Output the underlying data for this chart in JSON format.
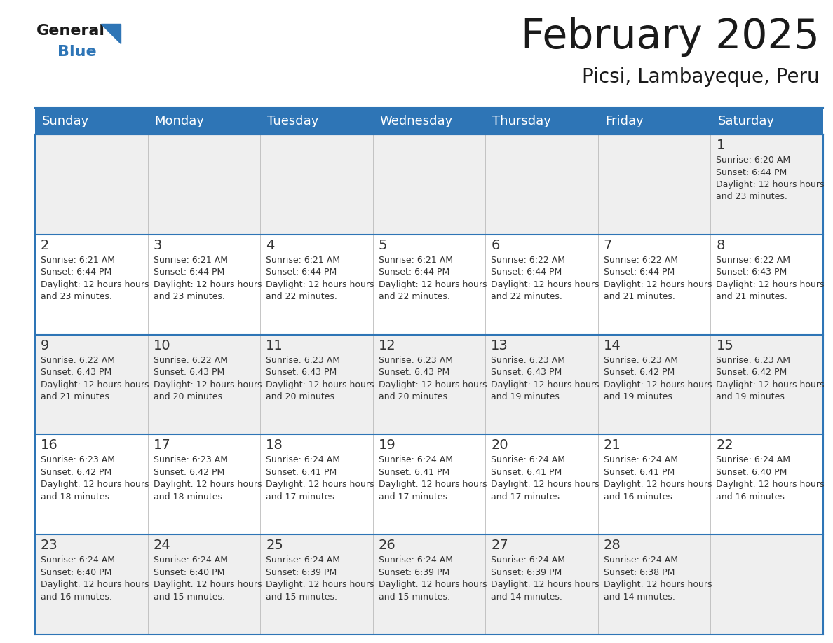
{
  "title": "February 2025",
  "subtitle": "Picsi, Lambayeque, Peru",
  "days_of_week": [
    "Sunday",
    "Monday",
    "Tuesday",
    "Wednesday",
    "Thursday",
    "Friday",
    "Saturday"
  ],
  "header_bg": "#2E75B6",
  "header_text": "#FFFFFF",
  "cell_bg": "#FFFFFF",
  "cell_alt_bg": "#EFEFEF",
  "grid_line_color": "#2E75B6",
  "day_number_color": "#333333",
  "info_text_color": "#333333",
  "title_color": "#1a1a1a",
  "subtitle_color": "#1a1a1a",
  "logo_general_color": "#1a1a1a",
  "logo_blue_color": "#2E75B6",
  "calendar_data": [
    [
      null,
      null,
      null,
      null,
      null,
      null,
      {
        "day": 1,
        "sunrise": "6:20 AM",
        "sunset": "6:44 PM",
        "daylight": "12 hours and 23 minutes"
      }
    ],
    [
      {
        "day": 2,
        "sunrise": "6:21 AM",
        "sunset": "6:44 PM",
        "daylight": "12 hours and 23 minutes"
      },
      {
        "day": 3,
        "sunrise": "6:21 AM",
        "sunset": "6:44 PM",
        "daylight": "12 hours and 23 minutes"
      },
      {
        "day": 4,
        "sunrise": "6:21 AM",
        "sunset": "6:44 PM",
        "daylight": "12 hours and 22 minutes"
      },
      {
        "day": 5,
        "sunrise": "6:21 AM",
        "sunset": "6:44 PM",
        "daylight": "12 hours and 22 minutes"
      },
      {
        "day": 6,
        "sunrise": "6:22 AM",
        "sunset": "6:44 PM",
        "daylight": "12 hours and 22 minutes"
      },
      {
        "day": 7,
        "sunrise": "6:22 AM",
        "sunset": "6:44 PM",
        "daylight": "12 hours and 21 minutes"
      },
      {
        "day": 8,
        "sunrise": "6:22 AM",
        "sunset": "6:43 PM",
        "daylight": "12 hours and 21 minutes"
      }
    ],
    [
      {
        "day": 9,
        "sunrise": "6:22 AM",
        "sunset": "6:43 PM",
        "daylight": "12 hours and 21 minutes"
      },
      {
        "day": 10,
        "sunrise": "6:22 AM",
        "sunset": "6:43 PM",
        "daylight": "12 hours and 20 minutes"
      },
      {
        "day": 11,
        "sunrise": "6:23 AM",
        "sunset": "6:43 PM",
        "daylight": "12 hours and 20 minutes"
      },
      {
        "day": 12,
        "sunrise": "6:23 AM",
        "sunset": "6:43 PM",
        "daylight": "12 hours and 20 minutes"
      },
      {
        "day": 13,
        "sunrise": "6:23 AM",
        "sunset": "6:43 PM",
        "daylight": "12 hours and 19 minutes"
      },
      {
        "day": 14,
        "sunrise": "6:23 AM",
        "sunset": "6:42 PM",
        "daylight": "12 hours and 19 minutes"
      },
      {
        "day": 15,
        "sunrise": "6:23 AM",
        "sunset": "6:42 PM",
        "daylight": "12 hours and 19 minutes"
      }
    ],
    [
      {
        "day": 16,
        "sunrise": "6:23 AM",
        "sunset": "6:42 PM",
        "daylight": "12 hours and 18 minutes"
      },
      {
        "day": 17,
        "sunrise": "6:23 AM",
        "sunset": "6:42 PM",
        "daylight": "12 hours and 18 minutes"
      },
      {
        "day": 18,
        "sunrise": "6:24 AM",
        "sunset": "6:41 PM",
        "daylight": "12 hours and 17 minutes"
      },
      {
        "day": 19,
        "sunrise": "6:24 AM",
        "sunset": "6:41 PM",
        "daylight": "12 hours and 17 minutes"
      },
      {
        "day": 20,
        "sunrise": "6:24 AM",
        "sunset": "6:41 PM",
        "daylight": "12 hours and 17 minutes"
      },
      {
        "day": 21,
        "sunrise": "6:24 AM",
        "sunset": "6:41 PM",
        "daylight": "12 hours and 16 minutes"
      },
      {
        "day": 22,
        "sunrise": "6:24 AM",
        "sunset": "6:40 PM",
        "daylight": "12 hours and 16 minutes"
      }
    ],
    [
      {
        "day": 23,
        "sunrise": "6:24 AM",
        "sunset": "6:40 PM",
        "daylight": "12 hours and 16 minutes"
      },
      {
        "day": 24,
        "sunrise": "6:24 AM",
        "sunset": "6:40 PM",
        "daylight": "12 hours and 15 minutes"
      },
      {
        "day": 25,
        "sunrise": "6:24 AM",
        "sunset": "6:39 PM",
        "daylight": "12 hours and 15 minutes"
      },
      {
        "day": 26,
        "sunrise": "6:24 AM",
        "sunset": "6:39 PM",
        "daylight": "12 hours and 15 minutes"
      },
      {
        "day": 27,
        "sunrise": "6:24 AM",
        "sunset": "6:39 PM",
        "daylight": "12 hours and 14 minutes"
      },
      {
        "day": 28,
        "sunrise": "6:24 AM",
        "sunset": "6:38 PM",
        "daylight": "12 hours and 14 minutes"
      },
      null
    ]
  ],
  "figsize": [
    11.88,
    9.18
  ],
  "dpi": 100
}
